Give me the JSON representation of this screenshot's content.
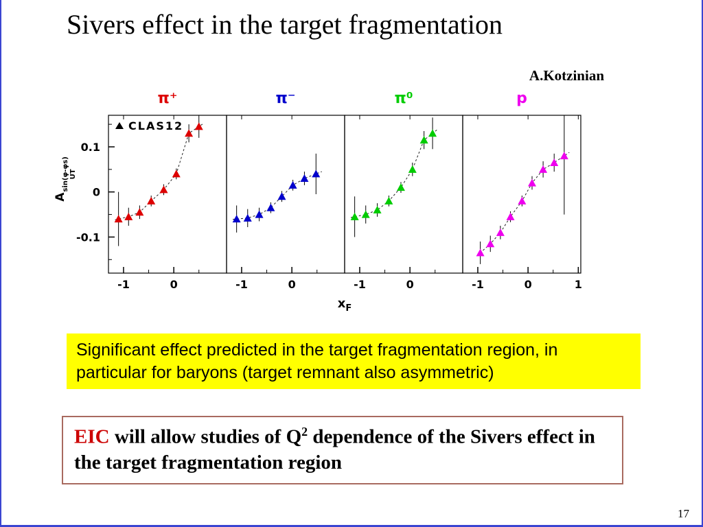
{
  "slide": {
    "title": "Sivers effect in the target fragmentation",
    "attribution": "A.Kotzinian",
    "page_number": "17",
    "frame_color": "#3a45d1"
  },
  "highlight_box": {
    "text": "Significant effect predicted in the target fragmentation region, in particular for baryons (target remnant also asymmetric)",
    "bg_color": "#ffff00"
  },
  "eic_box": {
    "highlight": "EIC",
    "highlight_color": "#cc0000",
    "border_color": "#a86a5f",
    "text_before_sup": " will allow studies of Q",
    "sup": "2",
    "text_after_sup": " dependence of the Sivers effect in the target fragmentation region"
  },
  "chart_data": {
    "type": "scatter",
    "title": "",
    "legend": {
      "marker": "triangle",
      "label": "CLAS12"
    },
    "ylabel": {
      "base": "A",
      "sub": "UT",
      "sup": "sin(φ-φs)"
    },
    "xlabel": {
      "base": "x",
      "sub": "F"
    },
    "ylim": [
      -0.18,
      0.17
    ],
    "xlim": [
      -1.3,
      1.05
    ],
    "yticks": [
      0.1,
      0,
      -0.1
    ],
    "ytick_labels": [
      "0.1",
      "0",
      "-0.1"
    ],
    "yticks_minor": [
      0.15,
      0.05,
      -0.05,
      -0.15
    ],
    "xticks_minor": [
      -0.5,
      0.5
    ],
    "panels": [
      {
        "label": "π⁺",
        "color": "#dd0000",
        "xticks": [
          -1,
          0
        ],
        "xtick_labels": [
          "-1",
          "0"
        ],
        "points": [
          {
            "x": -1.1,
            "y": -0.06,
            "err": 0.06
          },
          {
            "x": -0.9,
            "y": -0.055,
            "err": 0.02
          },
          {
            "x": -0.68,
            "y": -0.045,
            "err": 0.015
          },
          {
            "x": -0.45,
            "y": -0.02,
            "err": 0.012
          },
          {
            "x": -0.2,
            "y": 0.005,
            "err": 0.012
          },
          {
            "x": 0.05,
            "y": 0.04,
            "err": 0.012
          },
          {
            "x": 0.3,
            "y": 0.13,
            "err": 0.02
          },
          {
            "x": 0.5,
            "y": 0.145,
            "err": 0.025
          }
        ]
      },
      {
        "label": "π⁻",
        "color": "#0000cc",
        "xticks": [
          -1,
          0
        ],
        "xtick_labels": [
          "-1",
          "0"
        ],
        "points": [
          {
            "x": -1.1,
            "y": -0.06,
            "err": 0.03
          },
          {
            "x": -0.88,
            "y": -0.058,
            "err": 0.02
          },
          {
            "x": -0.65,
            "y": -0.05,
            "err": 0.015
          },
          {
            "x": -0.42,
            "y": -0.035,
            "err": 0.012
          },
          {
            "x": -0.2,
            "y": -0.01,
            "err": 0.012
          },
          {
            "x": 0.02,
            "y": 0.015,
            "err": 0.012
          },
          {
            "x": 0.25,
            "y": 0.03,
            "err": 0.015
          },
          {
            "x": 0.48,
            "y": 0.04,
            "err": 0.045
          }
        ]
      },
      {
        "label": "π⁰",
        "color": "#00cc00",
        "xticks": [
          -1,
          0
        ],
        "xtick_labels": [
          "-1",
          "0"
        ],
        "points": [
          {
            "x": -1.1,
            "y": -0.055,
            "err": 0.045
          },
          {
            "x": -0.88,
            "y": -0.05,
            "err": 0.02
          },
          {
            "x": -0.65,
            "y": -0.04,
            "err": 0.015
          },
          {
            "x": -0.42,
            "y": -0.02,
            "err": 0.012
          },
          {
            "x": -0.18,
            "y": 0.01,
            "err": 0.012
          },
          {
            "x": 0.05,
            "y": 0.05,
            "err": 0.015
          },
          {
            "x": 0.28,
            "y": 0.115,
            "err": 0.02
          },
          {
            "x": 0.45,
            "y": 0.13,
            "err": 0.035
          }
        ]
      },
      {
        "label": "p",
        "color": "#ee00ee",
        "xticks": [
          -1,
          0,
          1
        ],
        "xtick_labels": [
          "-1",
          "0",
          "1"
        ],
        "points": [
          {
            "x": -0.95,
            "y": -0.135,
            "err": 0.025
          },
          {
            "x": -0.75,
            "y": -0.115,
            "err": 0.018
          },
          {
            "x": -0.55,
            "y": -0.09,
            "err": 0.015
          },
          {
            "x": -0.35,
            "y": -0.055,
            "err": 0.012
          },
          {
            "x": -0.12,
            "y": -0.02,
            "err": 0.012
          },
          {
            "x": 0.08,
            "y": 0.02,
            "err": 0.015
          },
          {
            "x": 0.3,
            "y": 0.05,
            "err": 0.018
          },
          {
            "x": 0.52,
            "y": 0.065,
            "err": 0.02
          },
          {
            "x": 0.72,
            "y": 0.08,
            "err": 0.13
          }
        ]
      }
    ]
  }
}
